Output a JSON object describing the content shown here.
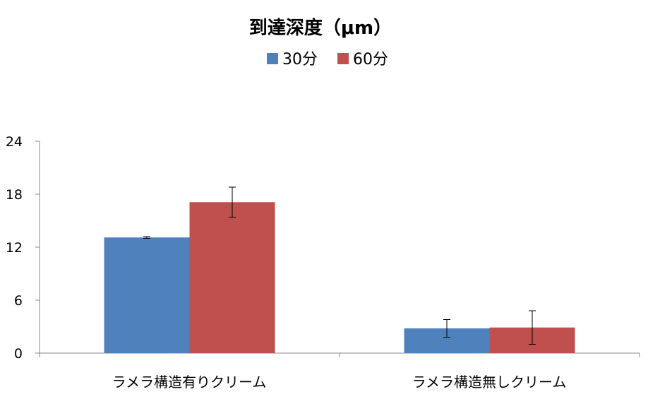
{
  "chart_data": {
    "type": "bar",
    "title": "到達深度（μm）",
    "categories": [
      "ラメラ構造有りクリーム",
      "ラメラ構造無しクリーム"
    ],
    "series": [
      {
        "name": "30分",
        "color": "#4f81bd",
        "values": [
          13.1,
          2.8
        ],
        "errors": [
          0.1,
          1.0
        ]
      },
      {
        "name": "60分",
        "color": "#c0504d",
        "values": [
          17.1,
          2.9
        ],
        "errors": [
          1.7,
          1.9
        ]
      }
    ],
    "ylim": [
      0,
      24
    ],
    "yticks": [
      "0",
      "6",
      "12",
      "18",
      "24"
    ],
    "legend": "top",
    "grid": false
  }
}
